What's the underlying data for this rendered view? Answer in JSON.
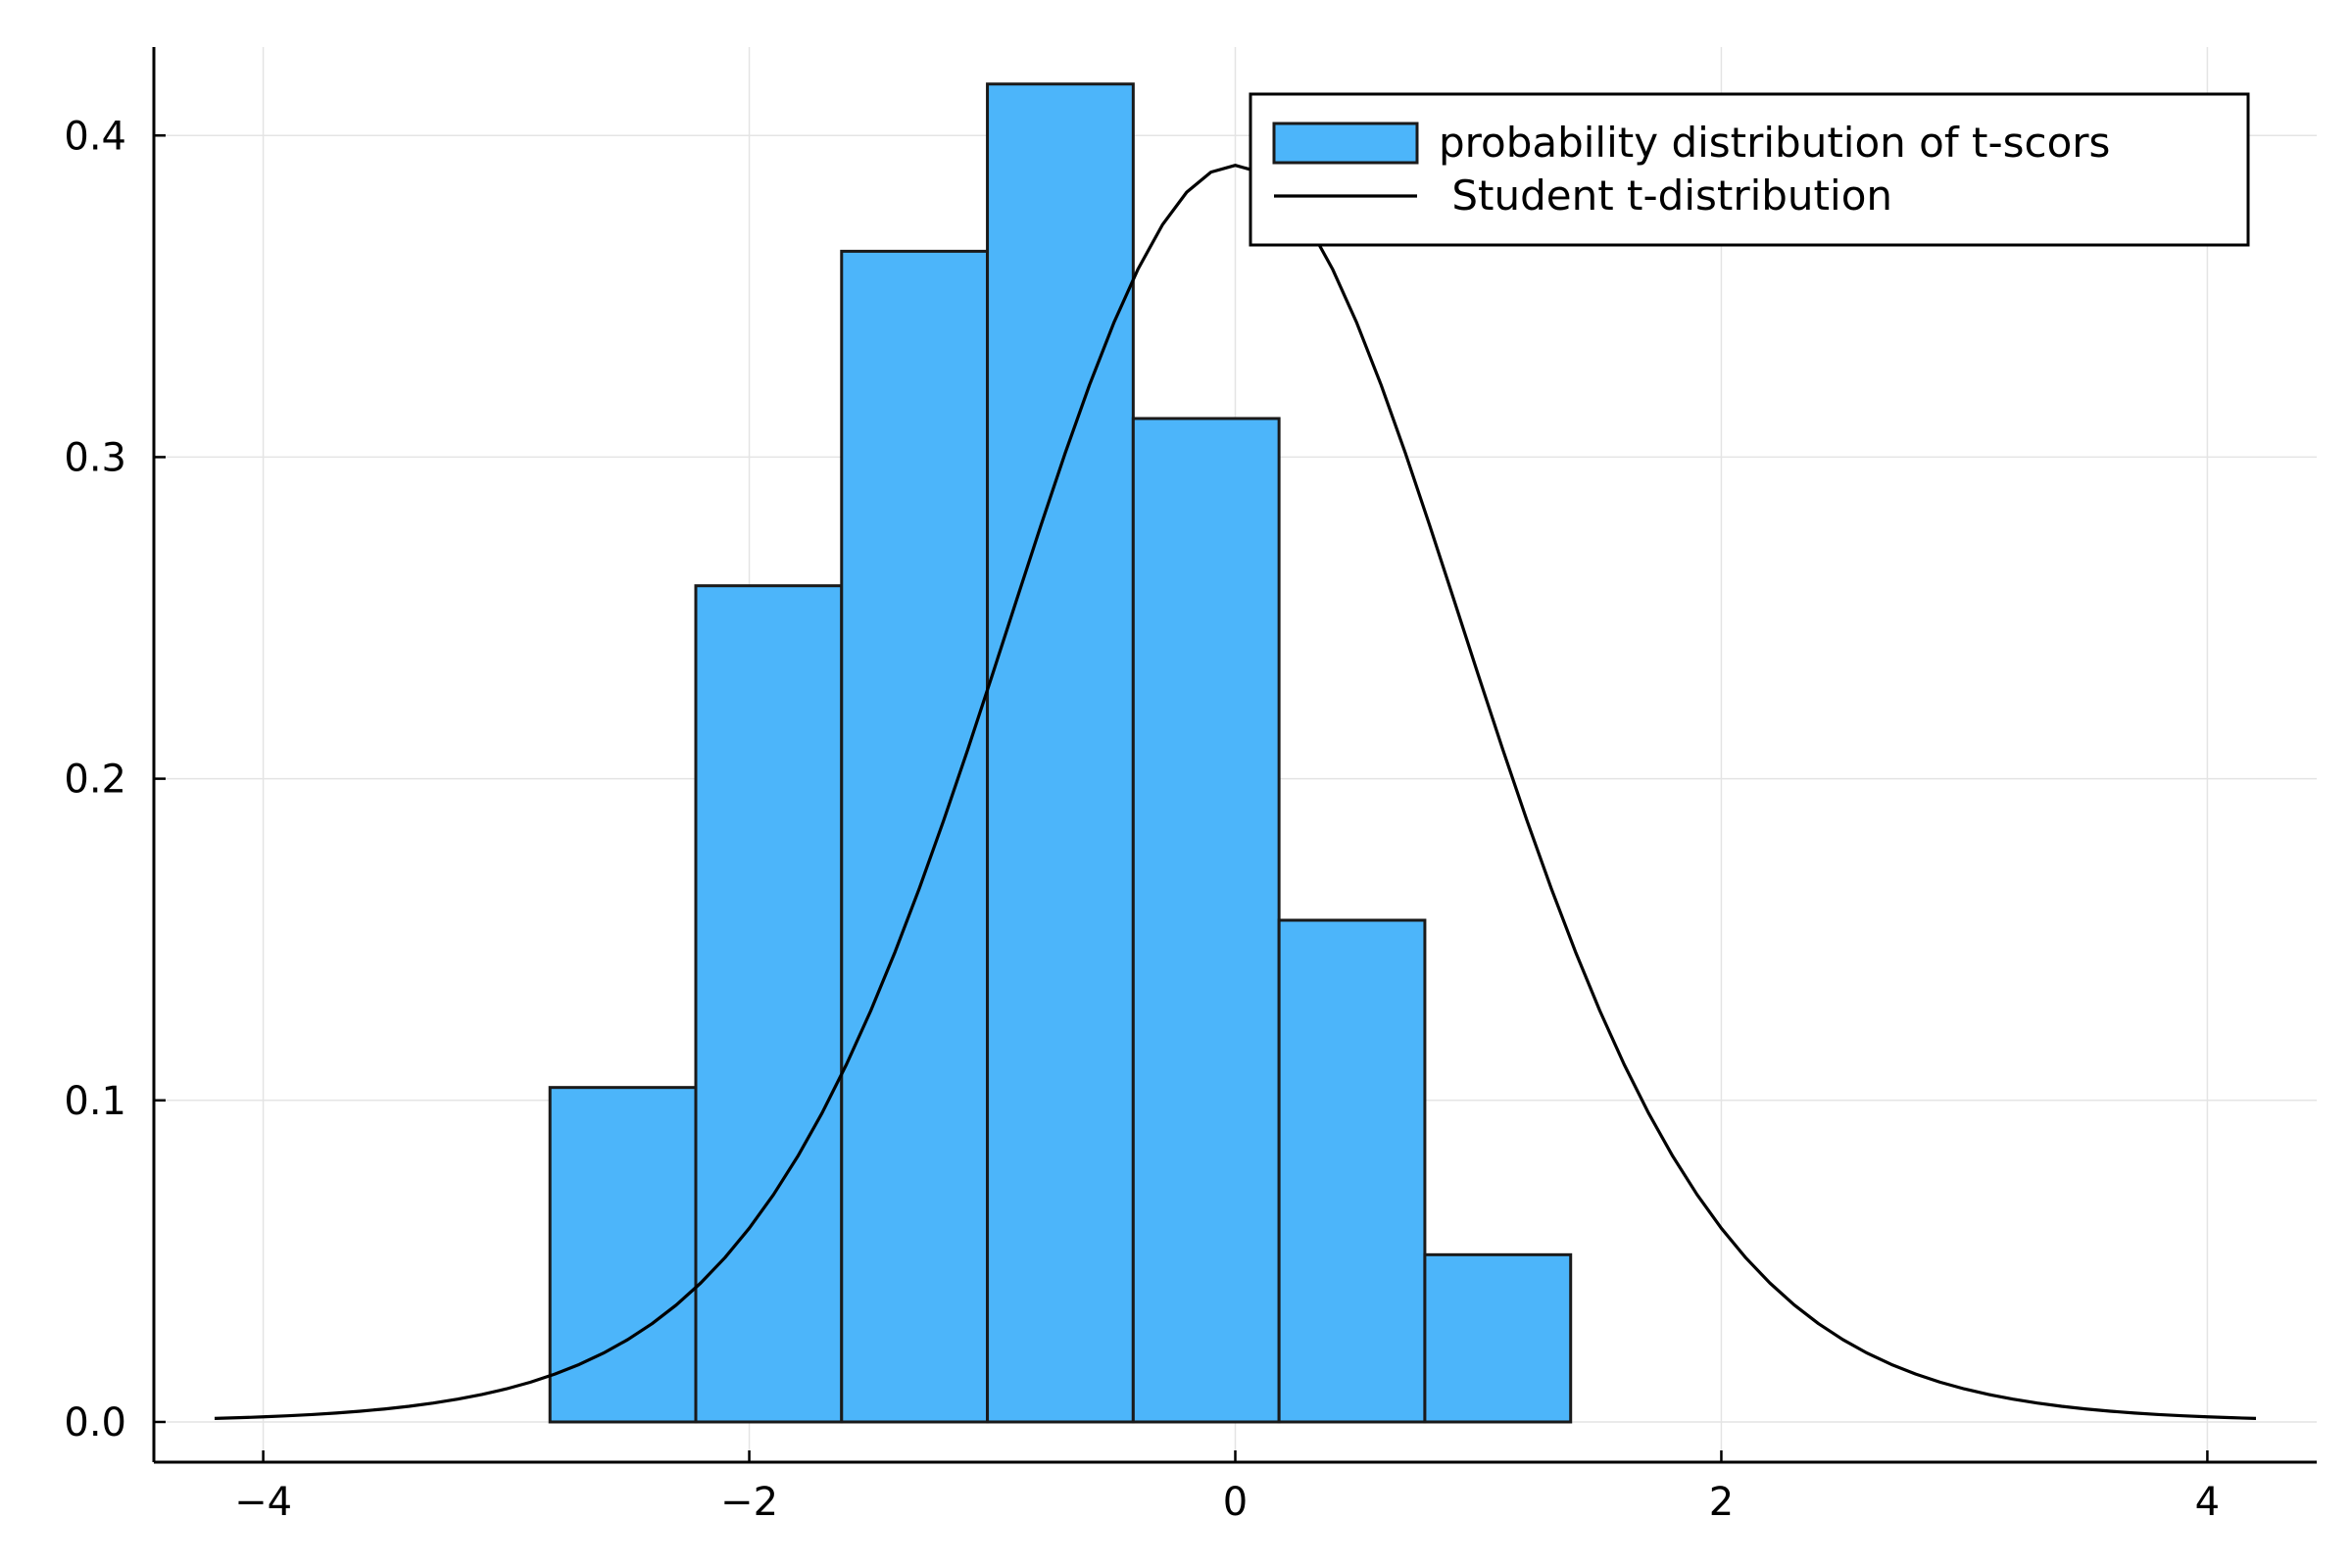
{
  "chart_data": {
    "type": "bar",
    "title": "",
    "xlabel": "",
    "ylabel": "",
    "xlim": [
      -4.45,
      4.45
    ],
    "ylim": [
      -0.0125,
      0.4275
    ],
    "grid": true,
    "legend_position": "top-right",
    "x_ticks": [
      {
        "value": -4,
        "label": "−4"
      },
      {
        "value": -2,
        "label": "−2"
      },
      {
        "value": 0,
        "label": "0"
      },
      {
        "value": 2,
        "label": "2"
      },
      {
        "value": 4,
        "label": "4"
      }
    ],
    "y_ticks": [
      {
        "value": 0.0,
        "label": "0.0"
      },
      {
        "value": 0.1,
        "label": "0.1"
      },
      {
        "value": 0.2,
        "label": "0.2"
      },
      {
        "value": 0.3,
        "label": "0.3"
      },
      {
        "value": 0.4,
        "label": "0.4"
      }
    ],
    "series": [
      {
        "name": "probability distribution of t-scors",
        "kind": "histogram",
        "color": "#4cb5fa",
        "edge_color": "#1a1a1a",
        "bins": [
          {
            "x0": -2.82,
            "x1": -2.22,
            "value": 0.104
          },
          {
            "x0": -2.22,
            "x1": -1.62,
            "value": 0.26
          },
          {
            "x0": -1.62,
            "x1": -1.02,
            "value": 0.364
          },
          {
            "x0": -1.02,
            "x1": -0.42,
            "value": 0.416
          },
          {
            "x0": -0.42,
            "x1": 0.18,
            "value": 0.312
          },
          {
            "x0": 0.18,
            "x1": 0.78,
            "value": 0.156
          },
          {
            "x0": 0.78,
            "x1": 1.38,
            "value": 0.052
          }
        ]
      },
      {
        "name": " Student t-distribution",
        "kind": "line",
        "color": "#000000",
        "x_range": [
          -4.2,
          4.2
        ],
        "df": 12,
        "points": 85
      }
    ]
  }
}
